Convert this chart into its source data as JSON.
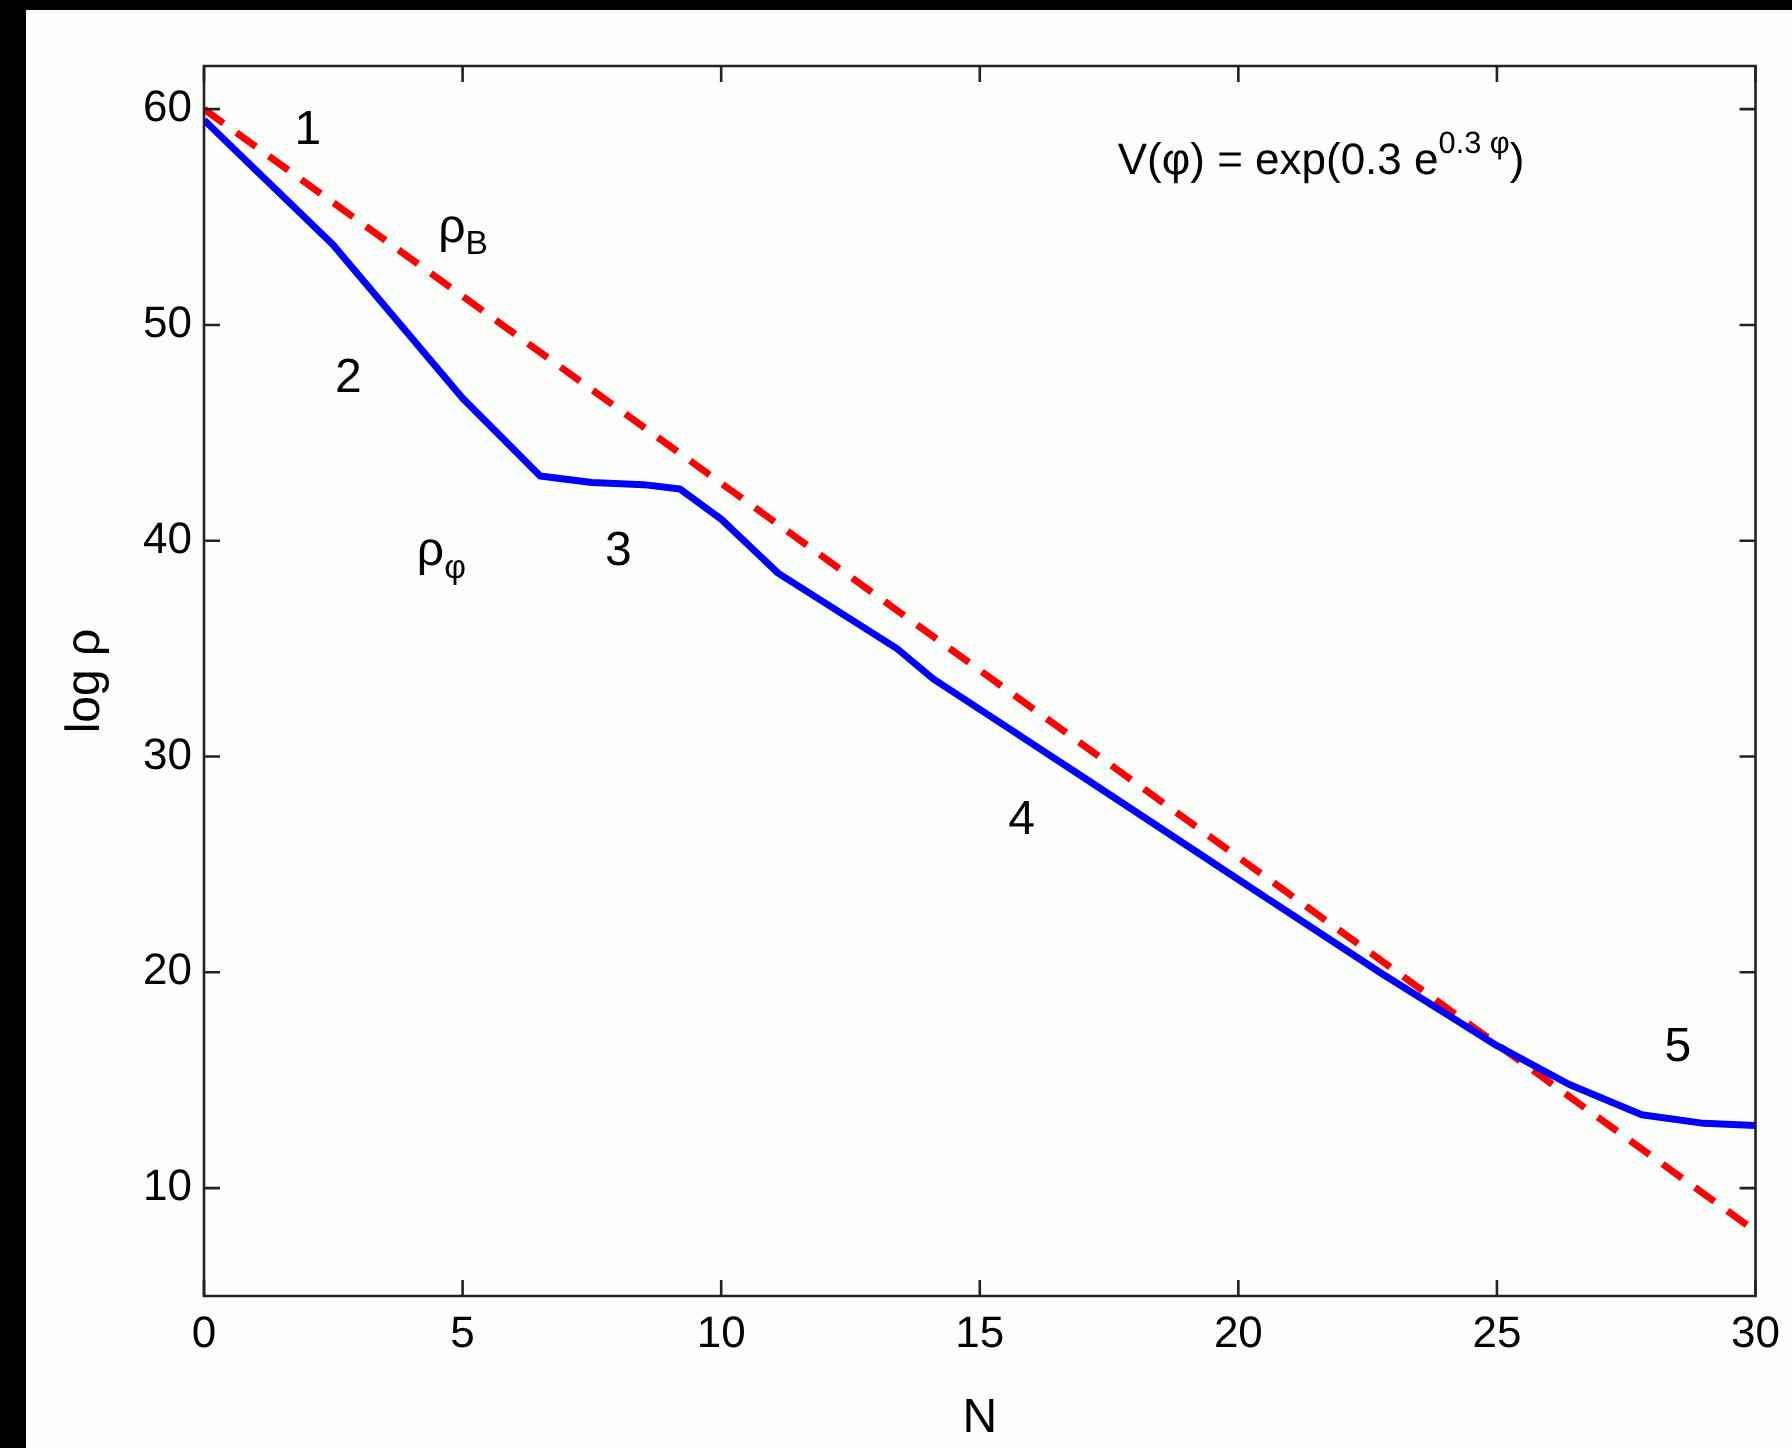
{
  "chart_data": {
    "type": "line",
    "xlabel": "N",
    "ylabel": "log ρ",
    "xlim": [
      0,
      30
    ],
    "xticks": [
      0,
      5,
      10,
      15,
      20,
      25,
      30
    ],
    "ylim": [
      5,
      62
    ],
    "yticks": [
      10,
      20,
      30,
      40,
      50,
      60
    ],
    "grid": false,
    "legend": false,
    "marker": "none",
    "series": [
      {
        "name": "ρ$_{φ}$",
        "color": "#0000ff",
        "line_style": "solid",
        "x": [
          0,
          2.5,
          5,
          6.5,
          7.5,
          8.5,
          9.2,
          10,
          11.1,
          13.4,
          14.1,
          16.9,
          20,
          22.8,
          25,
          26.4,
          27.8,
          29,
          30
        ],
        "values": [
          59.5,
          53.7,
          46.6,
          43,
          42.7,
          42.6,
          42.4,
          41,
          38.5,
          35,
          33.6,
          29.2,
          24.3,
          19.9,
          16.6,
          14.8,
          13.4,
          13,
          12.9
        ]
      },
      {
        "name": "ρ$_{B}$",
        "color": "#ff0000",
        "line_style": "dashed",
        "x": [
          0,
          30
        ],
        "values": [
          60,
          8
        ]
      }
    ],
    "annotations": [
      "1",
      "2",
      "3",
      "4",
      "5",
      "V(φ) = exp(0.3 e$^{0.3 φ}$)"
    ]
  }
}
